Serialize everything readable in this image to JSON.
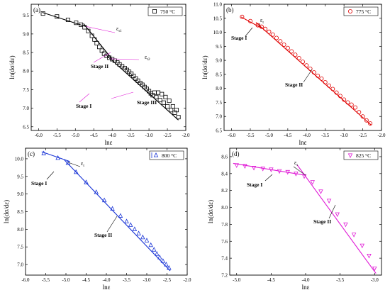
{
  "figure": {
    "panels": [
      {
        "id": "a",
        "label": "(a)",
        "legend": "750 °C",
        "color": "#000000",
        "marker": "square",
        "xlabel": "lnε",
        "ylabel": "ln(dσ/dε)",
        "stages": [
          "Stage I",
          "Stage II",
          "Stage III"
        ],
        "critical_labels": [
          "εt1",
          "εt2"
        ],
        "critical_points": [
          [
            -4.7,
            9.2
          ],
          [
            -4.05,
            8.33
          ]
        ],
        "chart_data": {
          "type": "scatter",
          "xlim": [
            -6.2,
            -2.0
          ],
          "ylim": [
            6.4,
            9.8
          ],
          "xticks": [
            -6.0,
            -5.5,
            -5.0,
            -4.5,
            -4.0,
            -3.5,
            -3.0,
            -2.5,
            -2.0
          ],
          "yticks": [
            6.5,
            7.0,
            7.5,
            8.0,
            8.5,
            9.0,
            9.5
          ],
          "points": [
            [
              -5.88,
              9.55
            ],
            [
              -5.5,
              9.47
            ],
            [
              -5.2,
              9.38
            ],
            [
              -4.98,
              9.3
            ],
            [
              -4.85,
              9.25
            ],
            [
              -4.75,
              9.18
            ],
            [
              -4.65,
              9.08
            ],
            [
              -4.55,
              8.95
            ],
            [
              -4.48,
              8.85
            ],
            [
              -4.42,
              8.75
            ],
            [
              -4.35,
              8.65
            ],
            [
              -4.28,
              8.55
            ],
            [
              -4.22,
              8.47
            ],
            [
              -4.15,
              8.41
            ],
            [
              -4.08,
              8.36
            ],
            [
              -4.0,
              8.32
            ],
            [
              -3.93,
              8.28
            ],
            [
              -3.86,
              8.23
            ],
            [
              -3.8,
              8.18
            ],
            [
              -3.73,
              8.13
            ],
            [
              -3.66,
              8.08
            ],
            [
              -3.6,
              8.03
            ],
            [
              -3.54,
              7.98
            ],
            [
              -3.48,
              7.93
            ],
            [
              -3.42,
              7.87
            ],
            [
              -3.36,
              7.8
            ],
            [
              -3.3,
              7.74
            ],
            [
              -3.24,
              7.68
            ],
            [
              -3.18,
              7.63
            ],
            [
              -3.12,
              7.57
            ],
            [
              -3.06,
              7.52
            ],
            [
              -3.0,
              7.46
            ],
            [
              -2.95,
              7.4
            ],
            [
              -2.9,
              7.35
            ],
            [
              -2.85,
              7.42
            ],
            [
              -2.8,
              7.3
            ],
            [
              -2.75,
              7.42
            ],
            [
              -2.7,
              7.22
            ],
            [
              -2.65,
              7.38
            ],
            [
              -2.6,
              7.15
            ],
            [
              -2.55,
              7.3
            ],
            [
              -2.5,
              7.05
            ],
            [
              -2.45,
              7.2
            ],
            [
              -2.4,
              6.95
            ],
            [
              -2.35,
              7.05
            ],
            [
              -2.3,
              6.88
            ],
            [
              -2.25,
              6.95
            ],
            [
              -2.2,
              6.76
            ]
          ],
          "fit_lines": [
            [
              [
                -5.9,
                9.58
              ],
              [
                -4.72,
                9.2
              ]
            ],
            [
              [
                -4.78,
                9.28
              ],
              [
                -4.0,
                8.32
              ]
            ],
            [
              [
                -4.15,
                8.42
              ],
              [
                -2.2,
                6.68
              ]
            ]
          ]
        }
      },
      {
        "id": "b",
        "label": "(b)",
        "legend": "775 °C",
        "color": "#e00000",
        "marker": "circle",
        "xlabel": "lnε",
        "ylabel": "ln(dσ/dε)",
        "stages": [
          "Stage I",
          "Stage II"
        ],
        "critical_labels": [
          "εt"
        ],
        "critical_points": [
          [
            -5.25,
            10.22
          ]
        ],
        "chart_data": {
          "type": "scatter",
          "xlim": [
            -6.2,
            -2.0
          ],
          "ylim": [
            6.5,
            11.0
          ],
          "xticks": [
            -6.0,
            -5.5,
            -5.0,
            -4.5,
            -4.0,
            -3.5,
            -3.0,
            -2.5,
            -2.0
          ],
          "yticks": [
            6.5,
            7.0,
            7.5,
            8.0,
            8.5,
            9.0,
            9.5,
            10.0,
            10.5,
            11.0
          ],
          "points": [
            [
              -5.72,
              10.55
            ],
            [
              -5.5,
              10.4
            ],
            [
              -5.3,
              10.25
            ],
            [
              -5.2,
              10.2
            ],
            [
              -5.1,
              10.12
            ],
            [
              -5.0,
              10.02
            ],
            [
              -4.9,
              9.92
            ],
            [
              -4.8,
              9.8
            ],
            [
              -4.7,
              9.68
            ],
            [
              -4.6,
              9.56
            ],
            [
              -4.5,
              9.44
            ],
            [
              -4.4,
              9.32
            ],
            [
              -4.3,
              9.2
            ],
            [
              -4.2,
              9.08
            ],
            [
              -4.1,
              8.95
            ],
            [
              -4.0,
              8.82
            ],
            [
              -3.9,
              8.7
            ],
            [
              -3.8,
              8.57
            ],
            [
              -3.7,
              8.45
            ],
            [
              -3.6,
              8.35
            ],
            [
              -3.5,
              8.22
            ],
            [
              -3.4,
              8.1
            ],
            [
              -3.3,
              7.98
            ],
            [
              -3.2,
              7.85
            ],
            [
              -3.1,
              7.73
            ],
            [
              -3.0,
              7.6
            ],
            [
              -2.9,
              7.5
            ],
            [
              -2.8,
              7.42
            ],
            [
              -2.7,
              7.32
            ],
            [
              -2.6,
              7.15
            ],
            [
              -2.5,
              7.0
            ],
            [
              -2.4,
              6.86
            ],
            [
              -2.3,
              6.75
            ]
          ],
          "fit_lines": [
            [
              [
                -5.75,
                10.55
              ],
              [
                -5.2,
                10.15
              ]
            ],
            [
              [
                -5.35,
                10.35
              ],
              [
                -2.28,
                6.7
              ]
            ]
          ]
        }
      },
      {
        "id": "c",
        "label": "(c)",
        "legend": "800 °C",
        "color": "#1a35d6",
        "marker": "triangle-up",
        "xlabel": "lnε",
        "ylabel": "ln(dσ/dε)",
        "stages": [
          "Stage I",
          "Stage II"
        ],
        "critical_labels": [
          "εt"
        ],
        "critical_points": [
          [
            -4.95,
            9.9
          ]
        ],
        "chart_data": {
          "type": "scatter",
          "xlim": [
            -6.0,
            -2.0
          ],
          "ylim": [
            6.7,
            10.3
          ],
          "xticks": [
            -6.0,
            -5.5,
            -5.0,
            -4.5,
            -4.0,
            -3.5,
            -3.0,
            -2.5,
            -2.0
          ],
          "yticks": [
            7.0,
            7.5,
            8.0,
            8.5,
            9.0,
            9.5,
            10.0
          ],
          "points": [
            [
              -5.55,
              10.15
            ],
            [
              -5.2,
              10.02
            ],
            [
              -4.95,
              9.88
            ],
            [
              -4.75,
              9.62
            ],
            [
              -4.5,
              9.33
            ],
            [
              -4.25,
              9.05
            ],
            [
              -4.05,
              8.82
            ],
            [
              -3.85,
              8.58
            ],
            [
              -3.65,
              8.38
            ],
            [
              -3.5,
              8.22
            ],
            [
              -3.4,
              8.12
            ],
            [
              -3.3,
              8.0
            ],
            [
              -3.2,
              7.88
            ],
            [
              -3.1,
              7.77
            ],
            [
              -3.0,
              7.68
            ],
            [
              -2.9,
              7.55
            ],
            [
              -2.82,
              7.42
            ],
            [
              -2.75,
              7.3
            ],
            [
              -2.68,
              7.2
            ],
            [
              -2.6,
              7.1
            ],
            [
              -2.52,
              7.0
            ],
            [
              -2.45,
              6.9
            ]
          ],
          "fit_lines": [
            [
              [
                -5.6,
                10.2
              ],
              [
                -4.9,
                9.92
              ]
            ],
            [
              [
                -5.05,
                9.98
              ],
              [
                -2.42,
                6.82
              ]
            ]
          ]
        }
      },
      {
        "id": "d",
        "label": "(d)",
        "legend": "825 °C",
        "color": "#e01ad6",
        "marker": "triangle-down",
        "xlabel": "lnε",
        "ylabel": "ln(dσ/dε)",
        "stages": [
          "Stage I",
          "Stage II"
        ],
        "critical_labels": [
          "εt"
        ],
        "critical_points": [
          [
            -4.0,
            8.38
          ]
        ],
        "chart_data": {
          "type": "scatter",
          "xlim": [
            -5.1,
            -2.9
          ],
          "ylim": [
            7.2,
            8.7
          ],
          "xticks": [
            -5.0,
            -4.5,
            -4.0,
            -3.5,
            -3.0
          ],
          "yticks": [
            7.2,
            7.4,
            7.6,
            7.8,
            8.0,
            8.2,
            8.4,
            8.6
          ],
          "points": [
            [
              -5.0,
              8.5
            ],
            [
              -4.88,
              8.49
            ],
            [
              -4.75,
              8.47
            ],
            [
              -4.62,
              8.46
            ],
            [
              -4.5,
              8.45
            ],
            [
              -4.38,
              8.43
            ],
            [
              -4.26,
              8.42
            ],
            [
              -4.14,
              8.4
            ],
            [
              -4.02,
              8.37
            ],
            [
              -3.9,
              8.3
            ],
            [
              -3.78,
              8.19
            ],
            [
              -3.66,
              8.08
            ],
            [
              -3.54,
              7.92
            ],
            [
              -3.42,
              7.8
            ],
            [
              -3.3,
              7.68
            ],
            [
              -3.18,
              7.55
            ],
            [
              -3.08,
              7.43
            ],
            [
              -3.0,
              7.28
            ]
          ],
          "fit_lines": [
            [
              [
                -5.05,
                8.52
              ],
              [
                -4.0,
                8.38
              ]
            ],
            [
              [
                -4.12,
                8.5
              ],
              [
                -2.98,
                7.22
              ]
            ]
          ]
        }
      }
    ]
  }
}
